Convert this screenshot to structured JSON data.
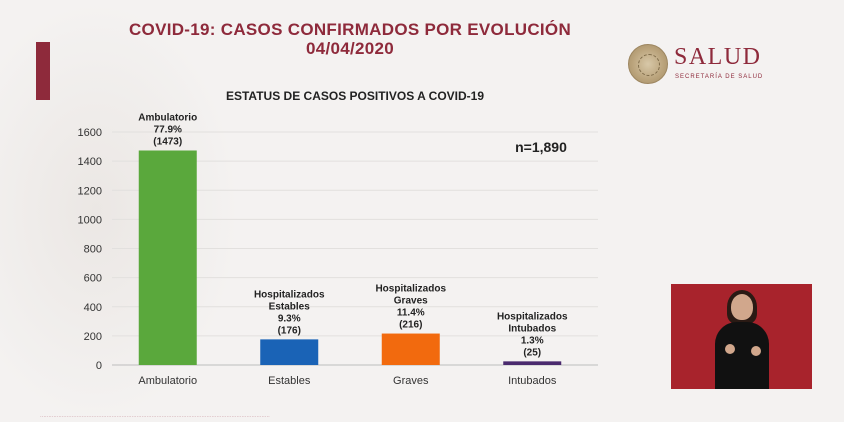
{
  "header": {
    "title_line1": "COVID-19: CASOS CONFIRMADOS POR EVOLUCIÓN",
    "title_line2": "04/04/2020",
    "accent_color": "#8e2a3b"
  },
  "logo": {
    "brand": "SALUD",
    "subtitle": "SECRETARÍA DE SALUD"
  },
  "chart_data": {
    "type": "bar",
    "title": "ESTATUS DE CASOS POSITIVOS A COVID-19",
    "categories": [
      "Ambulatorio",
      "Estables",
      "Graves",
      "Intubados"
    ],
    "values": [
      1473,
      176,
      216,
      25
    ],
    "colors": [
      "#5aa83c",
      "#1a63b6",
      "#f26a0e",
      "#4a2a6e"
    ],
    "data_labels": [
      [
        "Ambulatorio",
        "77.9%",
        "(1473)"
      ],
      [
        "Hospitalizados",
        "Estables",
        "9.3%",
        "(176)"
      ],
      [
        "Hospitalizados",
        "Graves",
        "11.4%",
        "(216)"
      ],
      [
        "Hospitalizados",
        "Intubados",
        "1.3%",
        "(25)"
      ]
    ],
    "yticks": [
      0,
      200,
      400,
      600,
      800,
      1000,
      1200,
      1400,
      1600
    ],
    "ylim": [
      0,
      1600
    ],
    "annotation": "n=1,890",
    "xlabel": "",
    "ylabel": ""
  }
}
